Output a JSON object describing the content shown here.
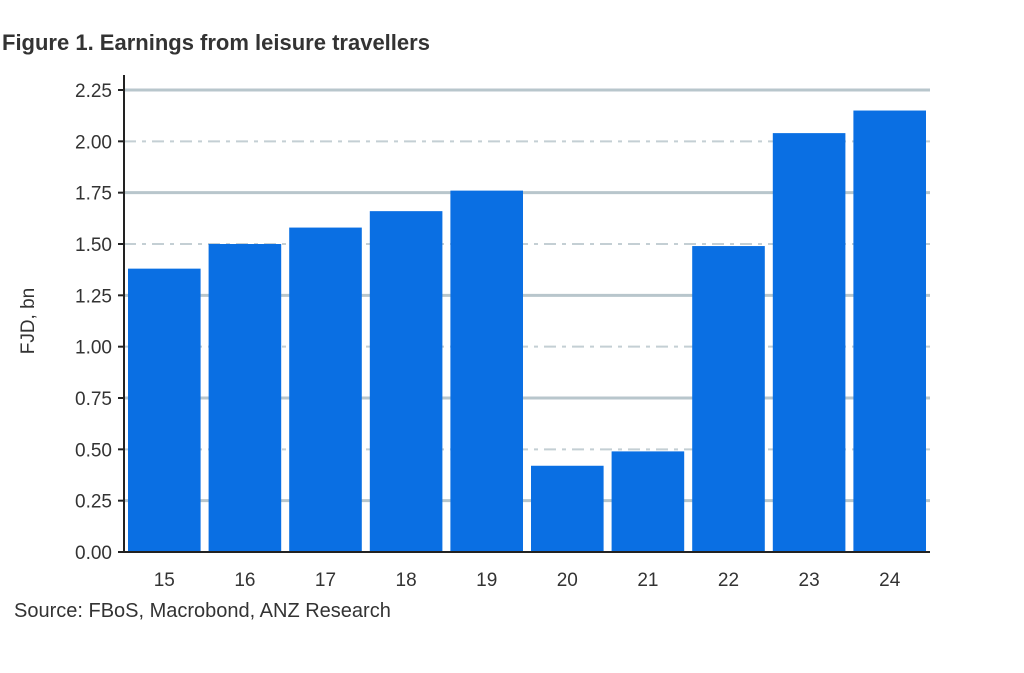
{
  "chart_data": {
    "type": "bar",
    "title": "Figure 1.  Earnings from leisure travellers",
    "xlabel": "",
    "ylabel": "FJD, bn",
    "categories": [
      "15",
      "16",
      "17",
      "18",
      "19",
      "20",
      "21",
      "22",
      "23",
      "24"
    ],
    "values": [
      1.38,
      1.5,
      1.58,
      1.66,
      1.76,
      0.42,
      0.49,
      1.49,
      2.04,
      2.15
    ],
    "ylim": [
      0,
      2.25
    ],
    "yticks": [
      "0.00",
      "0.25",
      "0.50",
      "0.75",
      "1.00",
      "1.25",
      "1.50",
      "1.75",
      "2.00",
      "2.25"
    ],
    "grid": true,
    "legend": "none",
    "bar_color": "#0a6fe3",
    "source": "Source: FBoS, Macrobond, ANZ Research"
  }
}
